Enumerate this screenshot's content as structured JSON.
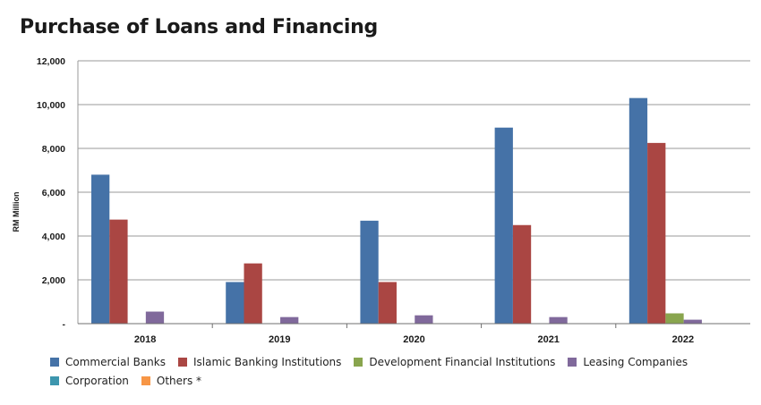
{
  "chart_data": {
    "type": "bar",
    "title": "Purchase of Loans and Financing",
    "ylabel": "RM Million",
    "xlabel": "",
    "categories": [
      "2018",
      "2019",
      "2020",
      "2021",
      "2022"
    ],
    "ylim": [
      0,
      12000
    ],
    "yticks": [
      0,
      2000,
      4000,
      6000,
      8000,
      10000,
      12000
    ],
    "ytick_labels": [
      "-",
      "2,000",
      "4,000",
      "6,000",
      "8,000",
      "10,000",
      "12,000"
    ],
    "grid": true,
    "legend_position": "bottom",
    "series": [
      {
        "name": "Commercial Banks",
        "color": "#4572A7",
        "values": [
          6800,
          1900,
          4700,
          8950,
          10300
        ]
      },
      {
        "name": "Islamic Banking Institutions",
        "color": "#AA4643",
        "values": [
          4750,
          2750,
          1900,
          4500,
          8250
        ]
      },
      {
        "name": "Development Financial Institutions",
        "color": "#89A54E",
        "values": [
          0,
          0,
          0,
          0,
          470
        ]
      },
      {
        "name": "Leasing Companies",
        "color": "#80699B",
        "values": [
          550,
          300,
          380,
          300,
          180
        ]
      },
      {
        "name": "Corporation",
        "color": "#3D96AE",
        "values": [
          0,
          0,
          0,
          0,
          0
        ]
      },
      {
        "name": "Others *",
        "color": "#F79646",
        "values": [
          0,
          0,
          0,
          0,
          0
        ]
      }
    ]
  }
}
